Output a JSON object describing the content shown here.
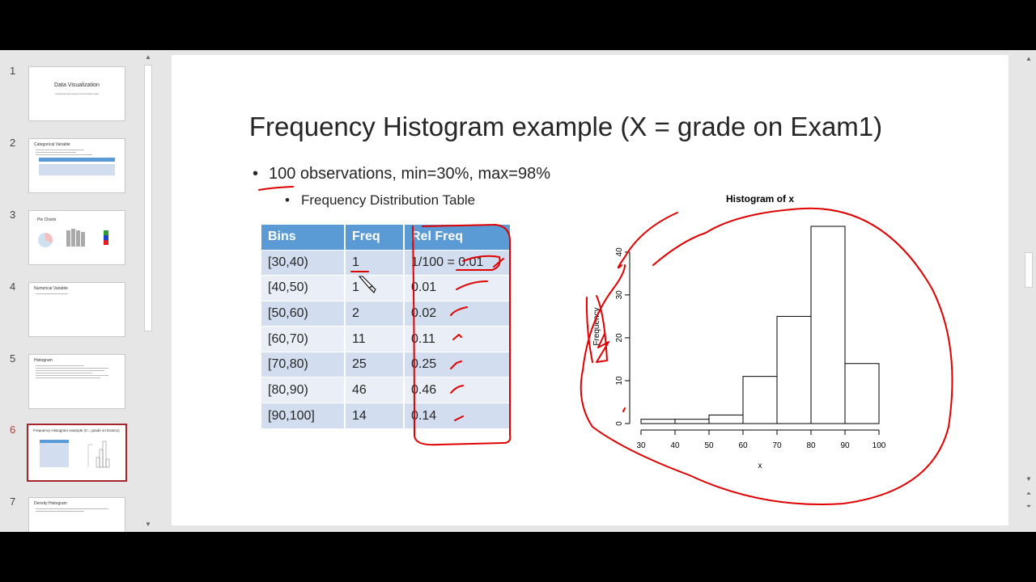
{
  "thumbnails": [
    {
      "num": "1",
      "title": "Data Visualization",
      "subtitle": "Graphical Summaries of Univariate Data"
    },
    {
      "num": "2",
      "title": "Categorical Variable"
    },
    {
      "num": "3",
      "title": "Pie Charts"
    },
    {
      "num": "4",
      "title": "Numerical Variable"
    },
    {
      "num": "5",
      "title": "Histogram"
    },
    {
      "num": "6",
      "title": "Frequency Histogram example (X = grade on Exam1)"
    },
    {
      "num": "7",
      "title": "Density Histogram"
    }
  ],
  "slide": {
    "title": "Frequency Histogram example (X = grade on Exam1)",
    "bullet1": "100 observations, min=30%, max=98%",
    "bullet2": "Frequency Distribution Table",
    "table": {
      "headers": [
        "Bins",
        "Freq",
        "Rel Freq"
      ],
      "rows": [
        [
          "[30,40)",
          "1",
          "1/100 = 0.01"
        ],
        [
          "[40,50)",
          "1",
          "0.01"
        ],
        [
          "[50,60)",
          "2",
          "0.02"
        ],
        [
          "[60,70)",
          "11",
          "0.11"
        ],
        [
          "[70,80)",
          "25",
          "0.25"
        ],
        [
          "[80,90)",
          "46",
          "0.46"
        ],
        [
          "[90,100]",
          "14",
          "0.14"
        ]
      ]
    }
  },
  "chart_data": {
    "type": "bar",
    "title": "Histogram of x",
    "xlabel": "x",
    "ylabel": "Frequency",
    "bins": [
      [
        30,
        40
      ],
      [
        40,
        50
      ],
      [
        50,
        60
      ],
      [
        60,
        70
      ],
      [
        70,
        80
      ],
      [
        80,
        90
      ],
      [
        90,
        100
      ]
    ],
    "values": [
      1,
      1,
      2,
      11,
      25,
      46,
      14
    ],
    "xticks": [
      "30",
      "40",
      "50",
      "60",
      "70",
      "80",
      "90",
      "100"
    ],
    "yticks": [
      "0",
      "10",
      "20",
      "30",
      "40"
    ],
    "xlim": [
      30,
      100
    ],
    "ylim": [
      0,
      46
    ]
  },
  "colors": {
    "header": "#5b9bd5",
    "row_odd": "#d2deef",
    "row_even": "#eaeff7",
    "ink": "#e00000",
    "active_thumb": "#a4262c"
  }
}
